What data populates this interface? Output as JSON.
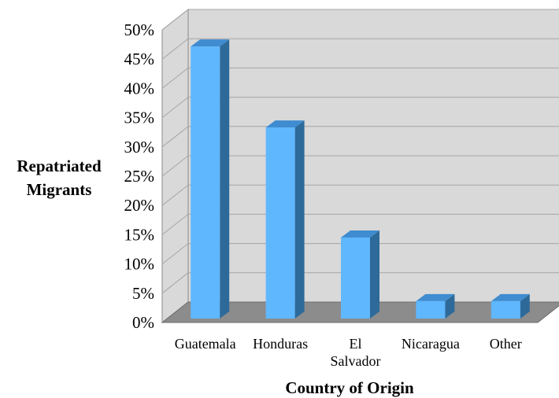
{
  "chart_data": {
    "type": "bar",
    "title": "",
    "xlabel": "Country of Origin",
    "ylabel_lines": [
      "Repatriated",
      "Migrants"
    ],
    "categories": [
      [
        "Guatemala"
      ],
      [
        "Honduras"
      ],
      [
        "El",
        "Salvador"
      ],
      [
        "Nicaragua"
      ],
      [
        "Other"
      ]
    ],
    "values": [
      47,
      33,
      14,
      3,
      3
    ],
    "unit": "%",
    "ylim": [
      0,
      50
    ],
    "yticks": [
      "0%",
      "5%",
      "10%",
      "15%",
      "20%",
      "25%",
      "30%",
      "35%",
      "40%",
      "45%",
      "50%"
    ],
    "grid": true,
    "legend": "none",
    "three_d": true,
    "colors": {
      "bar_front": "#5fb7fe",
      "bar_side": "#2d6a9a",
      "bar_top": "#3f8cd0",
      "wall": "#d9d9d9",
      "floor": "#8c8c8c",
      "gridline": "#a6a6a6"
    }
  }
}
